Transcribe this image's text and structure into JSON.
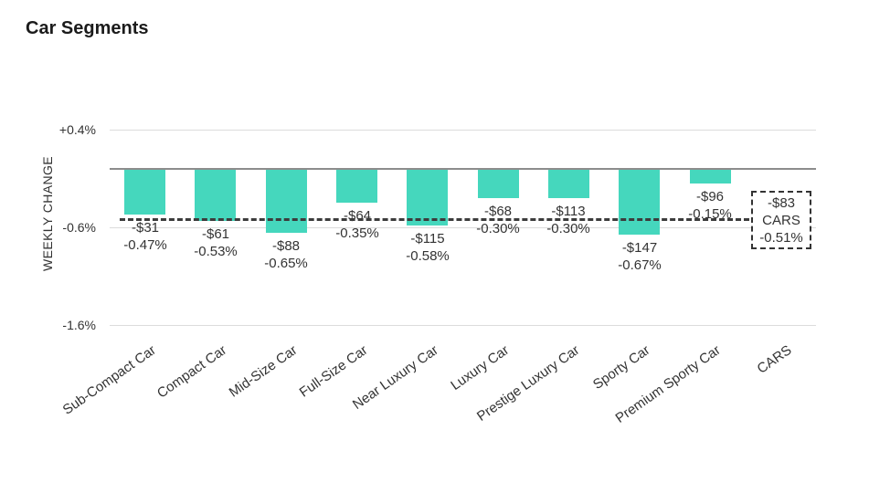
{
  "title": "Car Segments",
  "chart_data": {
    "type": "bar",
    "title": "Car Segments",
    "ylabel": "WEEKLY CHANGE",
    "xlabel": "",
    "ylim": [
      -1.6,
      0.4
    ],
    "grid": true,
    "legend_position": "none",
    "bar_color": "#45d7bd",
    "y_ticks": [
      {
        "value": 0.4,
        "label": "+0.4%"
      },
      {
        "value": -0.6,
        "label": "-0.6%"
      },
      {
        "value": -1.6,
        "label": "-1.6%"
      }
    ],
    "categories": [
      "Sub-Compact Car",
      "Compact Car",
      "Mid-Size Car",
      "Full-Size Car",
      "Near Luxury Car",
      "Luxury Car",
      "Prestige Luxury Car",
      "Sporty Car",
      "Premium Sporty Car",
      "CARS"
    ],
    "bars": [
      {
        "category": "Sub-Compact Car",
        "dollar_label": "-$31",
        "pct_label": "-0.47%",
        "value_pct": -0.47
      },
      {
        "category": "Compact Car",
        "dollar_label": "-$61",
        "pct_label": "-0.53%",
        "value_pct": -0.53
      },
      {
        "category": "Mid-Size Car",
        "dollar_label": "-$88",
        "pct_label": "-0.65%",
        "value_pct": -0.65
      },
      {
        "category": "Full-Size Car",
        "dollar_label": "-$64",
        "pct_label": "-0.35%",
        "value_pct": -0.35
      },
      {
        "category": "Near Luxury Car",
        "dollar_label": "-$115",
        "pct_label": "-0.58%",
        "value_pct": -0.58
      },
      {
        "category": "Luxury Car",
        "dollar_label": "-$68",
        "pct_label": "-0.30%",
        "value_pct": -0.3
      },
      {
        "category": "Prestige Luxury Car",
        "dollar_label": "-$113",
        "pct_label": "-0.30%",
        "value_pct": -0.3
      },
      {
        "category": "Sporty Car",
        "dollar_label": "-$147",
        "pct_label": "-0.67%",
        "value_pct": -0.67
      },
      {
        "category": "Premium Sporty Car",
        "dollar_label": "-$96",
        "pct_label": "-0.15%",
        "value_pct": -0.15
      }
    ],
    "summary": {
      "category": "CARS",
      "dollar_label": "-$83",
      "name_label": "CARS",
      "pct_label": "-0.51%",
      "value_pct": -0.51
    },
    "average_line": {
      "value_pct": -0.51,
      "style": "dashed",
      "color": "#3c3c3c"
    }
  }
}
